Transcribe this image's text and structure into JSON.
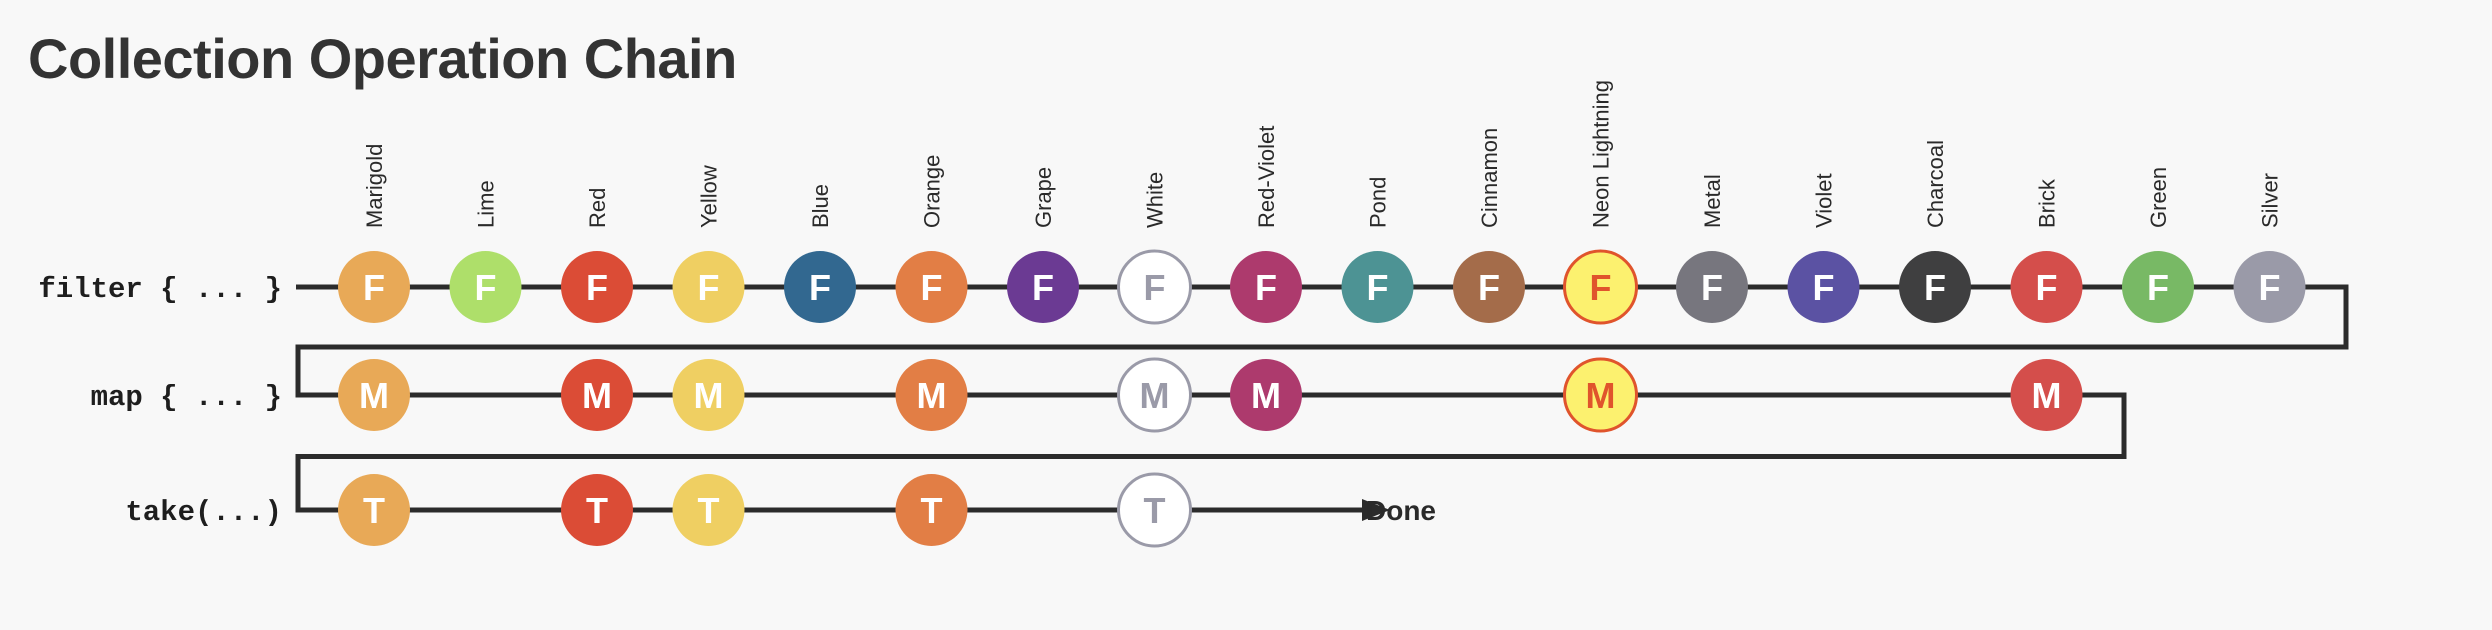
{
  "title": "Collection Operation Chain",
  "stages": [
    {
      "label": "filter { ... }",
      "letter": "F"
    },
    {
      "label": "map { ... }",
      "letter": "M"
    },
    {
      "label": "take(...)",
      "letter": "T"
    }
  ],
  "items": [
    {
      "name": "Marigold",
      "color": "#e8a957",
      "stages": [
        0,
        1,
        2
      ]
    },
    {
      "name": "Lime",
      "color": "#aedf6a",
      "stages": [
        0
      ]
    },
    {
      "name": "Red",
      "color": "#db4c36",
      "stages": [
        0,
        1,
        2
      ]
    },
    {
      "name": "Yellow",
      "color": "#efcf62",
      "stages": [
        0,
        1,
        2
      ]
    },
    {
      "name": "Blue",
      "color": "#326890",
      "stages": [
        0
      ]
    },
    {
      "name": "Orange",
      "color": "#e27e45",
      "stages": [
        0,
        1,
        2
      ]
    },
    {
      "name": "Grape",
      "color": "#6b3a93",
      "stages": [
        0
      ]
    },
    {
      "name": "White",
      "color": "#ffffff",
      "stages": [
        0,
        1,
        2
      ],
      "light": true
    },
    {
      "name": "Red-Violet",
      "color": "#ad3a6d",
      "stages": [
        0,
        1
      ]
    },
    {
      "name": "Pond",
      "color": "#4d9394",
      "stages": [
        0
      ]
    },
    {
      "name": "Cinnamon",
      "color": "#a46c4a",
      "stages": [
        0
      ]
    },
    {
      "name": "Neon Lightning",
      "color": "#fcf16f",
      "stages": [
        0,
        1
      ],
      "highlight": true
    },
    {
      "name": "Metal",
      "color": "#77767e",
      "stages": [
        0
      ]
    },
    {
      "name": "Violet",
      "color": "#5b52a3",
      "stages": [
        0
      ]
    },
    {
      "name": "Charcoal",
      "color": "#3f3f40",
      "stages": [
        0
      ]
    },
    {
      "name": "Brick",
      "color": "#d44e4b",
      "stages": [
        0,
        1
      ]
    },
    {
      "name": "Green",
      "color": "#78b965",
      "stages": [
        0
      ]
    },
    {
      "name": "Silver",
      "color": "#9a9aa8",
      "stages": [
        0
      ]
    }
  ],
  "end_label": "Done",
  "colors": {
    "line": "#2b2b2b",
    "light_node_text": "#9a9aa8",
    "highlight_text": "#e0542c",
    "highlight_ring": "#e0542c"
  }
}
